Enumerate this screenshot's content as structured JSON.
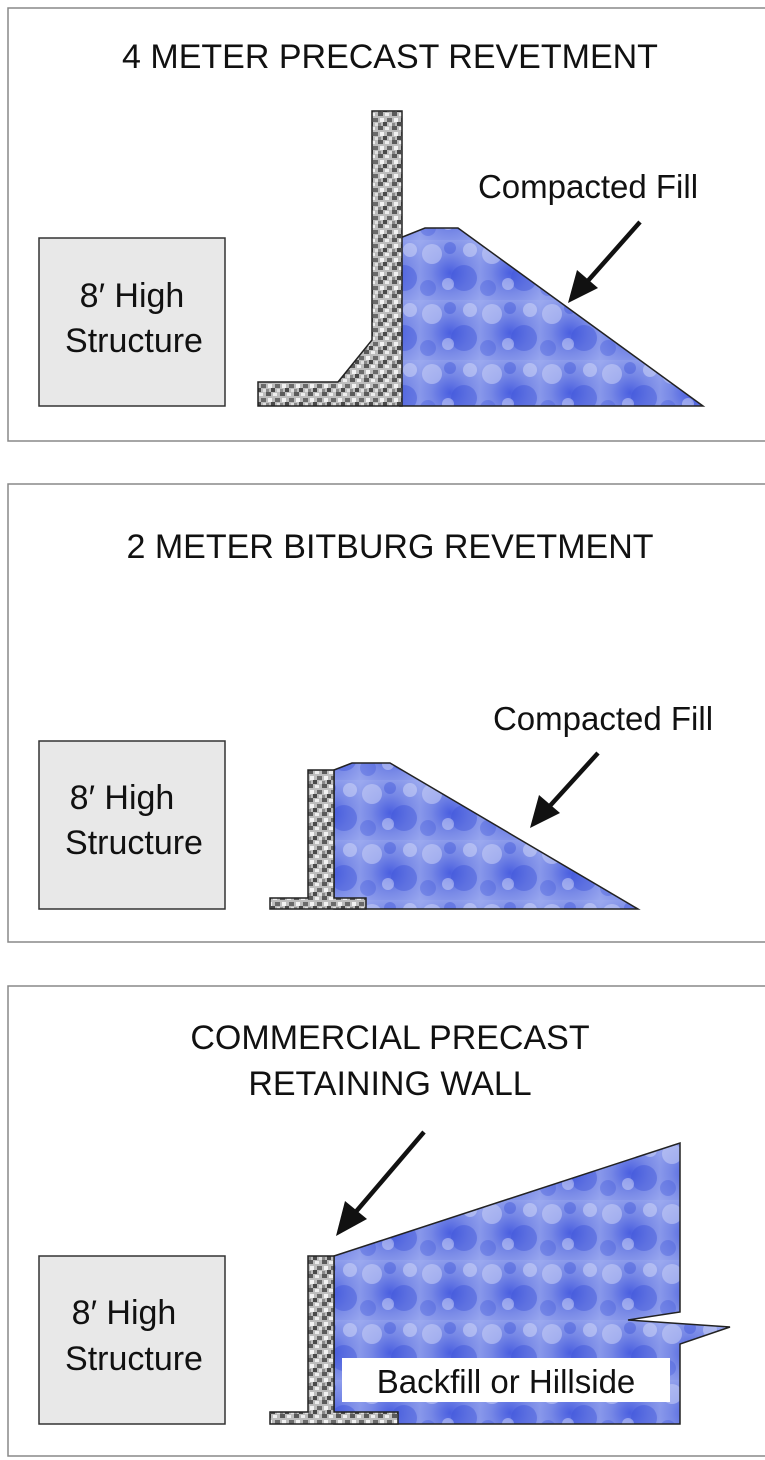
{
  "panels": [
    {
      "title": "4 METER PRECAST REVETMENT",
      "structure": {
        "line1": "8′ High",
        "line2": "Structure"
      },
      "callout": "Compacted Fill"
    },
    {
      "title": "2 METER BITBURG REVETMENT",
      "structure": {
        "line1": "8′ High",
        "line2": "Structure"
      },
      "callout": "Compacted Fill"
    },
    {
      "title_line1": "COMMERCIAL PRECAST",
      "title_line2": "RETAINING WALL",
      "structure": {
        "line1": "8′ High",
        "line2": "Structure"
      },
      "callout": "Backfill or Hillside"
    }
  ],
  "colors": {
    "fill_blue": "#5566dd",
    "fill_light": "#aab8f0",
    "structure_gray": "#e8e8e8",
    "concrete_dark": "#555555",
    "concrete_light": "#d8d8d8"
  }
}
